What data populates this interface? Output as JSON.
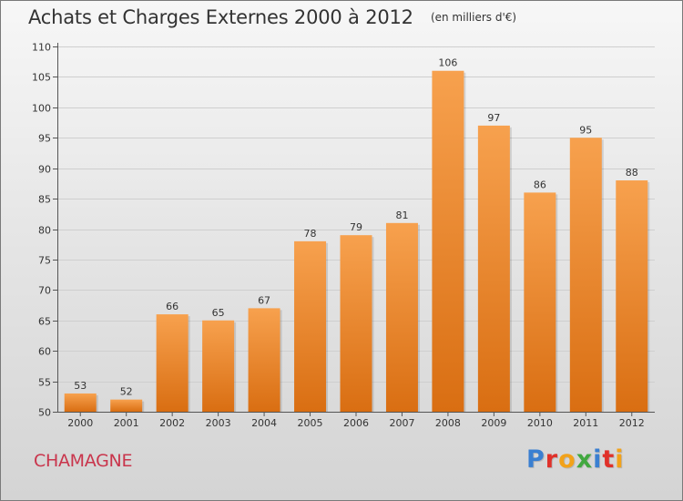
{
  "header": {
    "title": "Achats et Charges Externes 2000 à 2012",
    "subtitle": "(en milliers d'€)"
  },
  "footer": {
    "commune": "CHAMAGNE",
    "logo_text": "Proxiti",
    "logo_letters": [
      {
        "char": "P",
        "color": "#3a7fd1"
      },
      {
        "char": "r",
        "color": "#e0312a"
      },
      {
        "char": "o",
        "color": "#f2a21a"
      },
      {
        "char": "x",
        "color": "#41a83f"
      },
      {
        "char": "i",
        "color": "#3a7fd1"
      },
      {
        "char": "t",
        "color": "#e0312a"
      },
      {
        "char": "i",
        "color": "#f2a21a"
      }
    ]
  },
  "colors": {
    "bar_top": "#f7a14e",
    "bar_bottom": "#d96e12",
    "axis": "#555555",
    "grid": "#cfcfcf",
    "text": "#333333",
    "commune": "#c9354c"
  },
  "chart_data": {
    "type": "bar",
    "title": "Achats et Charges Externes 2000 à 2012",
    "subtitle": "(en milliers d'€)",
    "categories": [
      "2000",
      "2001",
      "2002",
      "2003",
      "2004",
      "2005",
      "2006",
      "2007",
      "2008",
      "2009",
      "2010",
      "2011",
      "2012"
    ],
    "values": [
      53,
      52,
      66,
      65,
      67,
      78,
      79,
      81,
      106,
      97,
      86,
      95,
      88
    ],
    "ylim": [
      50,
      110
    ],
    "yticks": [
      50,
      55,
      60,
      65,
      70,
      75,
      80,
      85,
      90,
      95,
      100,
      105,
      110
    ],
    "xlabel": "",
    "ylabel": "",
    "grid": true,
    "data_labels": true
  }
}
